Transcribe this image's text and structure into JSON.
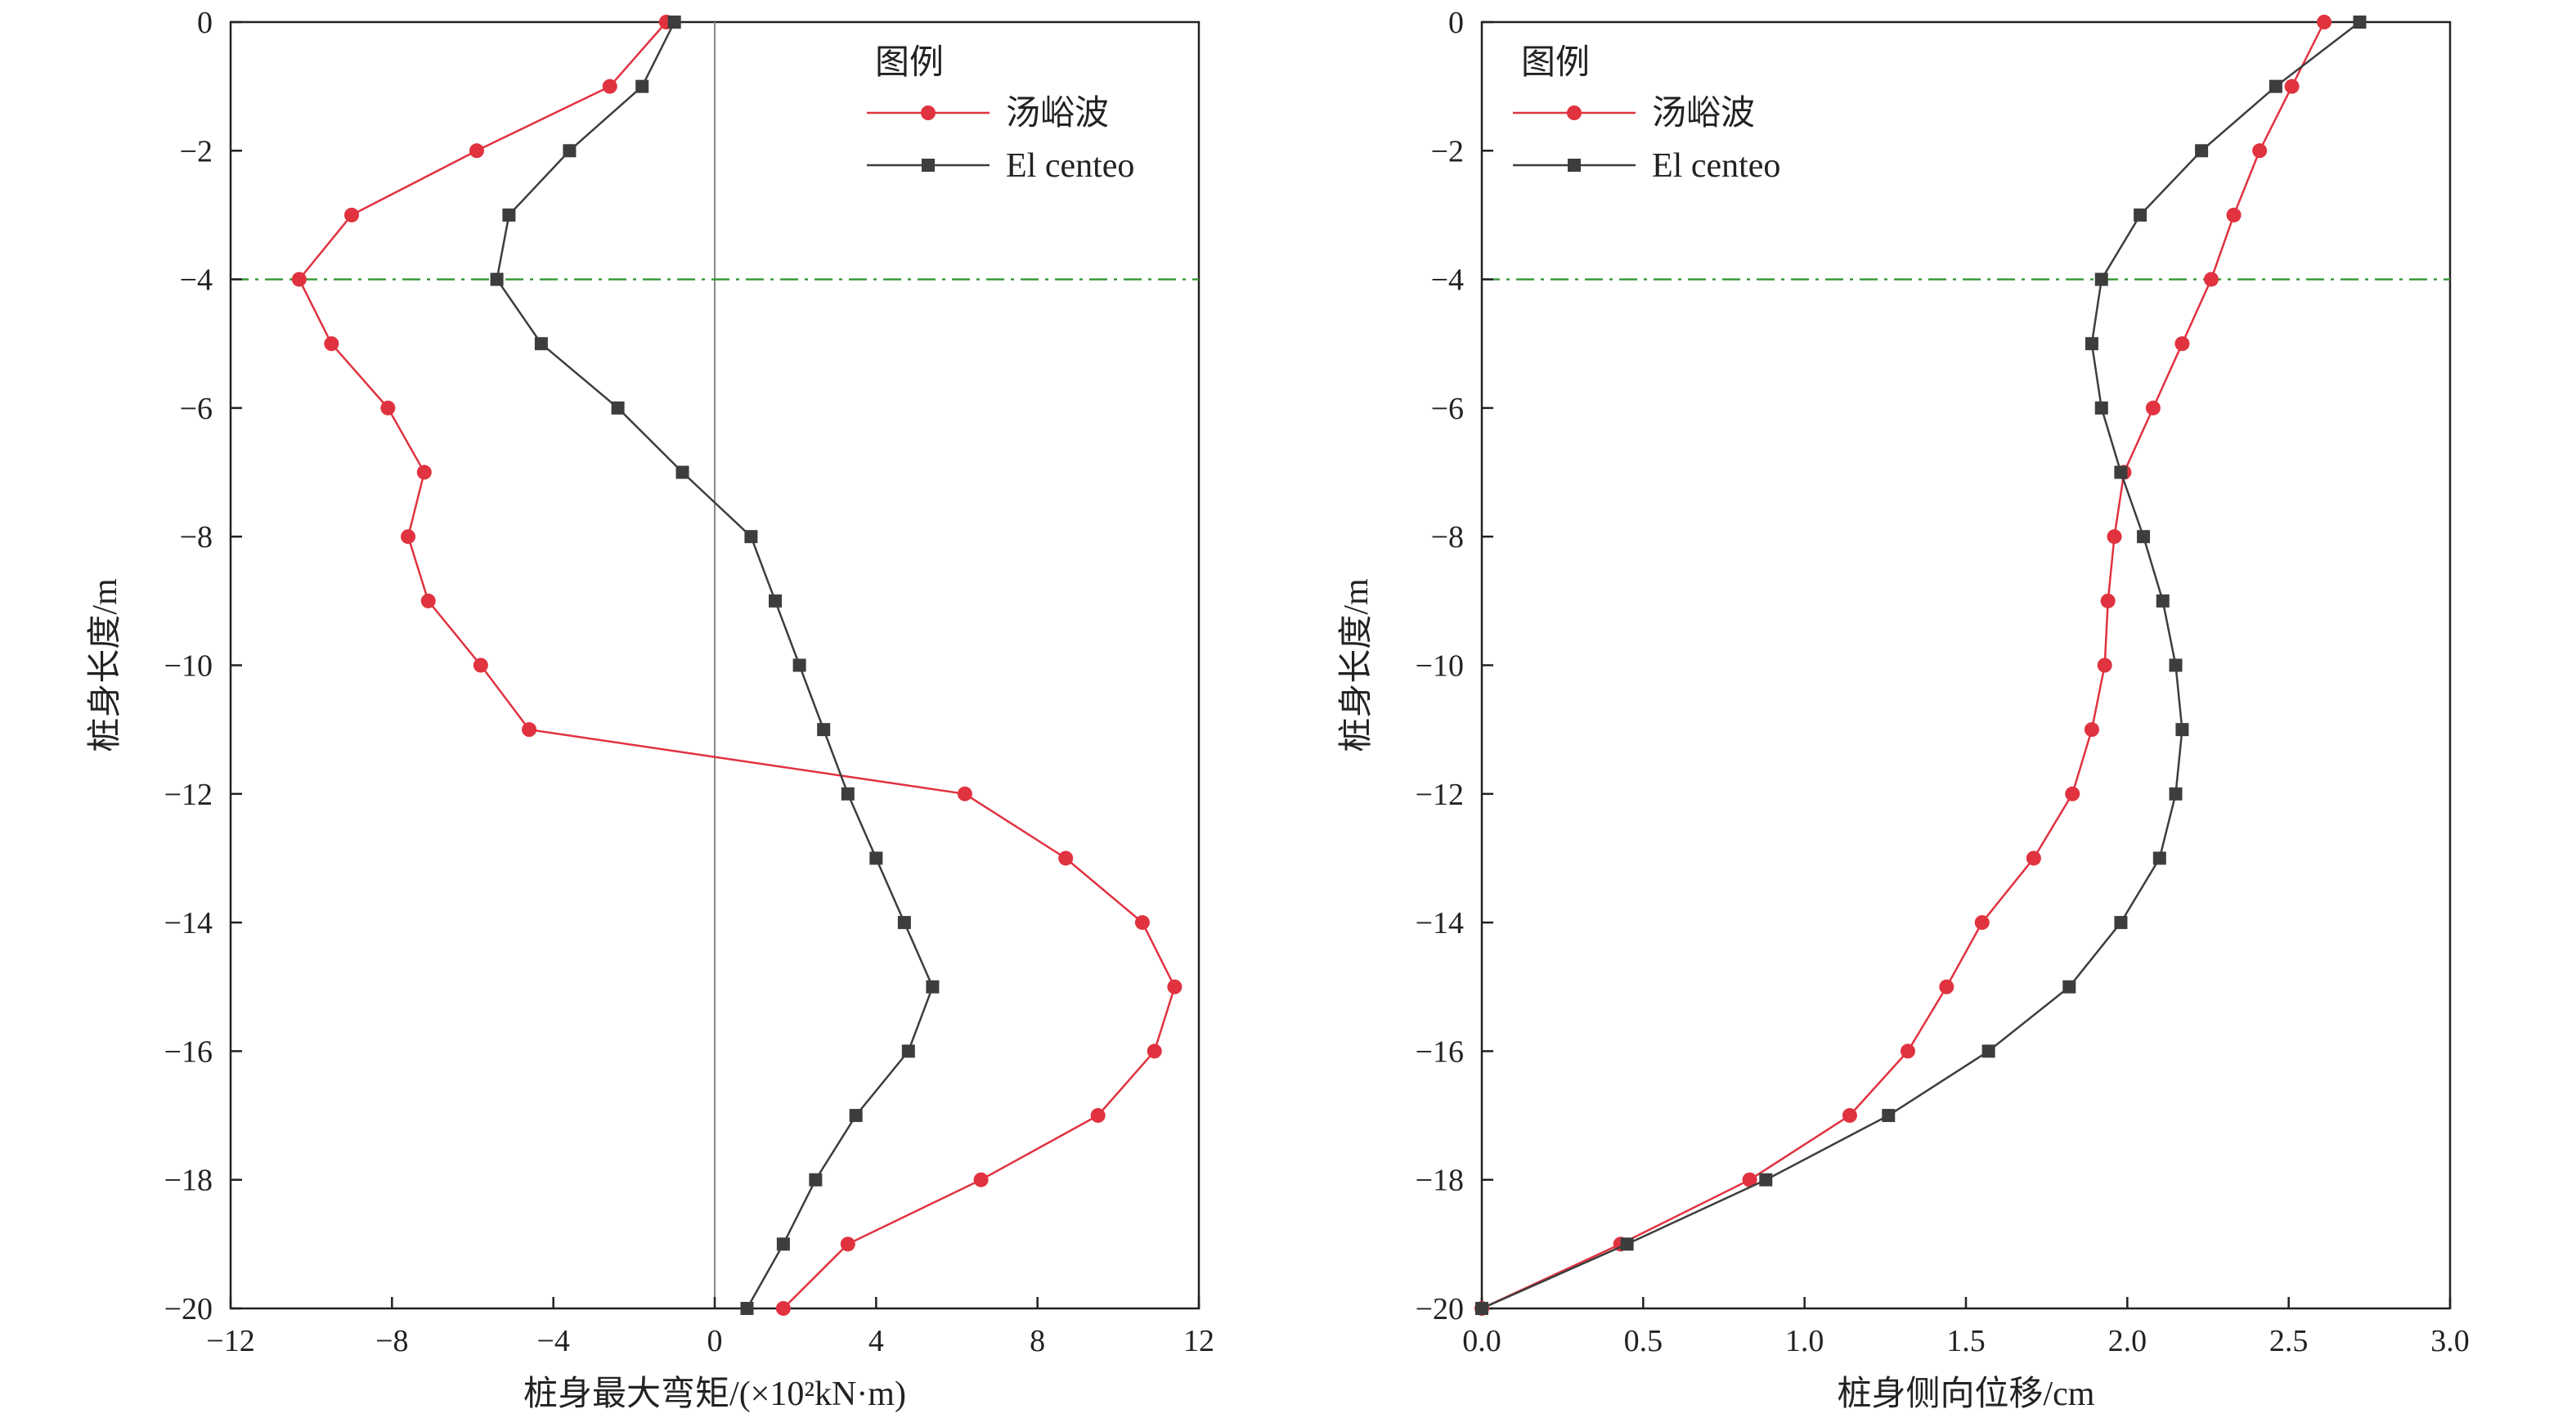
{
  "colors": {
    "series_red": "#e0323f",
    "series_dark": "#3d3d3d",
    "reference_line": "#3a9a3a",
    "zero_line": "#888888",
    "axis": "#222222"
  },
  "chart_data": [
    {
      "type": "line",
      "xlabel": "桩身最大弯矩/(×10²kN·m)",
      "ylabel": "桩身长度/m",
      "xlim": [
        -12,
        12
      ],
      "ylim": [
        -20,
        0
      ],
      "xticks": [
        -12,
        -8,
        -4,
        0,
        4,
        8,
        12
      ],
      "yticks": [
        0,
        -2,
        -4,
        -6,
        -8,
        -10,
        -12,
        -14,
        -16,
        -18,
        -20
      ],
      "xtick_labels": [
        "−12",
        "−8",
        "−4",
        "0",
        "4",
        "8",
        "12"
      ],
      "ytick_labels": [
        "0",
        "−2",
        "−4",
        "−6",
        "−8",
        "−10",
        "−12",
        "−14",
        "−16",
        "−18",
        "−20"
      ],
      "grid": false,
      "reference_hline": -4,
      "zero_vline": 0,
      "legend": {
        "title": "图例",
        "position": "top-right"
      },
      "series": [
        {
          "name": "汤峪波",
          "marker": "circle",
          "color": "#e0323f",
          "x": [
            -1.2,
            -2.6,
            -5.9,
            -9.0,
            -10.3,
            -9.5,
            -8.1,
            -7.2,
            -7.6,
            -7.1,
            -5.8,
            -4.6,
            6.2,
            8.7,
            10.6,
            11.4,
            10.9,
            9.5,
            6.6,
            3.3,
            1.7
          ],
          "y": [
            0,
            -1,
            -2,
            -3,
            -4,
            -5,
            -6,
            -7,
            -8,
            -9,
            -10,
            -11,
            -12,
            -13,
            -14,
            -15,
            -16,
            -17,
            -18,
            -19,
            -20
          ]
        },
        {
          "name": "El centeo",
          "marker": "square",
          "color": "#3d3d3d",
          "x": [
            -1.0,
            -1.8,
            -3.6,
            -5.1,
            -5.4,
            -4.3,
            -2.4,
            -0.8,
            0.9,
            1.5,
            2.1,
            2.7,
            3.3,
            4.0,
            4.7,
            5.4,
            4.8,
            3.5,
            2.5,
            1.7,
            0.8
          ],
          "y": [
            0,
            -1,
            -2,
            -3,
            -4,
            -5,
            -6,
            -7,
            -8,
            -9,
            -10,
            -11,
            -12,
            -13,
            -14,
            -15,
            -16,
            -17,
            -18,
            -19,
            -20
          ]
        }
      ]
    },
    {
      "type": "line",
      "xlabel": "桩身侧向位移/cm",
      "ylabel": "桩身长度/m",
      "xlim": [
        0,
        3.0
      ],
      "ylim": [
        -20,
        0
      ],
      "xticks": [
        0,
        0.5,
        1.0,
        1.5,
        2.0,
        2.5,
        3.0
      ],
      "yticks": [
        0,
        -2,
        -4,
        -6,
        -8,
        -10,
        -12,
        -14,
        -16,
        -18,
        -20
      ],
      "xtick_labels": [
        "0.0",
        "0.5",
        "1.0",
        "1.5",
        "2.0",
        "2.5",
        "3.0"
      ],
      "ytick_labels": [
        "0",
        "−2",
        "−4",
        "−6",
        "−8",
        "−10",
        "−12",
        "−14",
        "−16",
        "−18",
        "−20"
      ],
      "grid": false,
      "reference_hline": -4,
      "legend": {
        "title": "图例",
        "position": "top-left"
      },
      "series": [
        {
          "name": "汤峪波",
          "marker": "circle",
          "color": "#e0323f",
          "x": [
            2.61,
            2.51,
            2.41,
            2.33,
            2.26,
            2.17,
            2.08,
            1.99,
            1.96,
            1.94,
            1.93,
            1.89,
            1.83,
            1.71,
            1.55,
            1.44,
            1.32,
            1.14,
            0.83,
            0.43,
            0.0
          ],
          "y": [
            0,
            -1,
            -2,
            -3,
            -4,
            -5,
            -6,
            -7,
            -8,
            -9,
            -10,
            -11,
            -12,
            -13,
            -14,
            -15,
            -16,
            -17,
            -18,
            -19,
            -20
          ]
        },
        {
          "name": "El centeo",
          "marker": "square",
          "color": "#3d3d3d",
          "x": [
            2.72,
            2.46,
            2.23,
            2.04,
            1.92,
            1.89,
            1.92,
            1.98,
            2.05,
            2.11,
            2.15,
            2.17,
            2.15,
            2.1,
            1.98,
            1.82,
            1.57,
            1.26,
            0.88,
            0.45,
            0.0
          ],
          "y": [
            0,
            -1,
            -2,
            -3,
            -4,
            -5,
            -6,
            -7,
            -8,
            -9,
            -10,
            -11,
            -12,
            -13,
            -14,
            -15,
            -16,
            -17,
            -18,
            -19,
            -20
          ]
        }
      ]
    }
  ]
}
